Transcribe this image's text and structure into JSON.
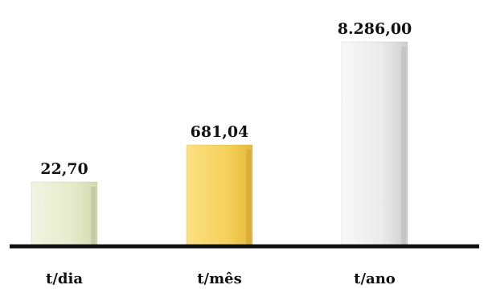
{
  "chart_data": {
    "type": "bar",
    "categories": [
      "t/dia",
      "t/mês",
      "t/ano"
    ],
    "values": [
      22.7,
      681.04,
      8286.0
    ],
    "value_labels": [
      "22,70",
      "681,04",
      "8.286,00"
    ],
    "title": "",
    "xlabel": "",
    "ylabel": "",
    "legend": "none",
    "grid": false,
    "scale": "per-bar",
    "colors": [
      "#e8ecd0",
      "#f7d564",
      "#e9e9e9"
    ]
  }
}
